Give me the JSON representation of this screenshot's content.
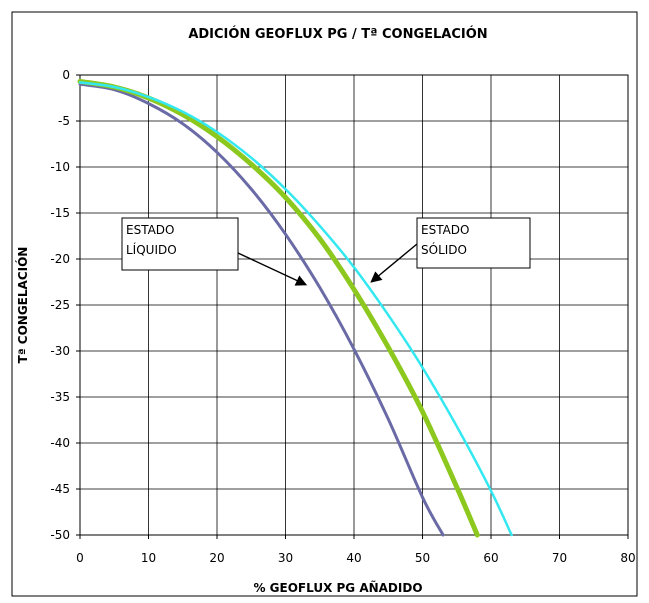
{
  "chart_data": {
    "type": "line",
    "title": "ADICIÓN GEOFLUX PG / Tª CONGELACIÓN",
    "xlabel": "% GEOFLUX PG AÑADIDO",
    "ylabel": "Tª CONGELACIÓN",
    "xlim": [
      0,
      80
    ],
    "ylim": [
      -50,
      0
    ],
    "x_ticks": [
      "0",
      "10",
      "20",
      "30",
      "40",
      "50",
      "60",
      "70",
      "80"
    ],
    "y_ticks": [
      "0",
      "-5",
      "-10",
      "-15",
      "-20",
      "-25",
      "-30",
      "-35",
      "-40",
      "-45",
      "-50"
    ],
    "x_tick_values": [
      0,
      10,
      20,
      30,
      40,
      50,
      60,
      70,
      80
    ],
    "y_tick_values": [
      0,
      -5,
      -10,
      -15,
      -20,
      -25,
      -30,
      -35,
      -40,
      -45,
      -50
    ],
    "grid": true,
    "legend": "none",
    "series": [
      {
        "color": "#6a6aa6",
        "x": [
          0,
          5,
          10,
          15,
          20,
          25,
          30,
          35,
          40,
          45,
          50,
          53
        ],
        "y": [
          -1.0,
          -1.6,
          -3.1,
          -5.3,
          -8.4,
          -12.4,
          -17.3,
          -23.1,
          -29.8,
          -37.4,
          -45.9,
          -50
        ]
      },
      {
        "color": "#8cc81e",
        "x": [
          0,
          5,
          10,
          15,
          20,
          25,
          30,
          35,
          40,
          45,
          50,
          55,
          58
        ],
        "y": [
          -0.7,
          -1.3,
          -2.5,
          -4.3,
          -6.7,
          -9.7,
          -13.3,
          -17.8,
          -23.3,
          -29.6,
          -36.6,
          -44.8,
          -50
        ]
      },
      {
        "color": "#33e8f0",
        "x": [
          0,
          5,
          10,
          15,
          20,
          25,
          30,
          35,
          40,
          45,
          50,
          55,
          60,
          63
        ],
        "y": [
          -0.8,
          -1.3,
          -2.4,
          -4.0,
          -6.2,
          -9.0,
          -12.4,
          -16.4,
          -20.9,
          -26.1,
          -31.8,
          -38.2,
          -45.2,
          -50
        ]
      }
    ],
    "annotations": [
      {
        "lines": [
          "ESTADO",
          "LÍQUIDO"
        ],
        "arrow_to": [
          33,
          -22.8
        ]
      },
      {
        "lines": [
          "ESTADO",
          "SÓLIDO"
        ],
        "arrow_to": [
          42.5,
          -22.5
        ]
      }
    ]
  }
}
